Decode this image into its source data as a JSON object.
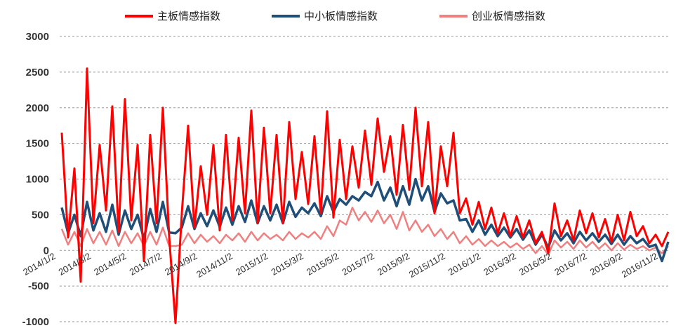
{
  "chart_data": {
    "type": "line",
    "title": "",
    "xlabel": "",
    "ylabel": "",
    "ylim": [
      -1000,
      3000
    ],
    "yticks": [
      -1000,
      -500,
      0,
      500,
      1000,
      1500,
      2000,
      2500,
      3000
    ],
    "ytick_labels": [
      "-1000",
      "-500",
      "0",
      "500",
      "1000",
      "1500",
      "2000",
      "2500",
      "3000"
    ],
    "grid": true,
    "legend": "top-center",
    "x_tick_labels": [
      "2014/1/2",
      "2014/3/2",
      "2014/5/2",
      "2014/7/2",
      "2014/9/2",
      "2014/11/2",
      "2015/1/2",
      "2015/3/2",
      "2015/5/2",
      "2015/7/2",
      "2015/9/2",
      "2015/11/2",
      "2016/1/2",
      "2016/3/2",
      "2016/5/2",
      "2016/7/2",
      "2016/9/2",
      "2016/11/2"
    ],
    "series": [
      {
        "name": "主板情感指数",
        "color": "#ff0000",
        "values": [
          1650,
          180,
          1150,
          -440,
          2550,
          380,
          1480,
          560,
          2020,
          260,
          2120,
          420,
          1480,
          -150,
          1620,
          380,
          2000,
          190,
          -1020,
          520,
          1750,
          320,
          1180,
          500,
          1480,
          280,
          1620,
          420,
          1580,
          520,
          1960,
          390,
          1720,
          520,
          1620,
          380,
          1800,
          720,
          1380,
          650,
          1600,
          520,
          1950,
          460,
          1550,
          720,
          1460,
          880,
          1680,
          920,
          1850,
          1100,
          1600,
          780,
          1760,
          850,
          2000,
          900,
          1800,
          520,
          1460,
          900,
          1650,
          520,
          730,
          360,
          680,
          300,
          600,
          240,
          520,
          200,
          480,
          180,
          420,
          100,
          260,
          -30,
          660,
          200,
          420,
          140,
          560,
          240,
          520,
          180,
          440,
          120,
          500,
          140,
          540,
          200,
          340,
          100,
          220,
          60,
          260
        ]
      },
      {
        "name": "中小板情感指数",
        "color": "#1f4e79",
        "values": [
          600,
          240,
          500,
          200,
          680,
          280,
          520,
          260,
          640,
          220,
          560,
          300,
          500,
          160,
          580,
          260,
          680,
          250,
          240,
          320,
          620,
          300,
          520,
          340,
          560,
          330,
          600,
          360,
          620,
          400,
          700,
          380,
          620,
          420,
          640,
          380,
          680,
          470,
          600,
          520,
          660,
          480,
          760,
          540,
          720,
          640,
          760,
          700,
          820,
          760,
          960,
          700,
          880,
          620,
          900,
          640,
          1000,
          700,
          900,
          540,
          800,
          660,
          700,
          420,
          440,
          260,
          420,
          220,
          360,
          200,
          320,
          180,
          300,
          150,
          280,
          80,
          220,
          40,
          280,
          140,
          240,
          100,
          260,
          140,
          240,
          120,
          220,
          90,
          220,
          80,
          200,
          100,
          160,
          50,
          80,
          -150,
          120
        ]
      },
      {
        "name": "创业板情感指数",
        "color": "#f08080",
        "values": [
          300,
          80,
          260,
          60,
          300,
          100,
          260,
          80,
          280,
          60,
          260,
          100,
          240,
          60,
          260,
          80,
          320,
          60,
          60,
          80,
          240,
          100,
          220,
          120,
          200,
          100,
          220,
          140,
          240,
          120,
          260,
          140,
          240,
          160,
          220,
          140,
          260,
          160,
          240,
          180,
          260,
          160,
          340,
          200,
          420,
          360,
          600,
          420,
          540,
          400,
          560,
          380,
          500,
          300,
          540,
          280,
          420,
          260,
          360,
          200,
          300,
          160,
          260,
          100,
          200,
          80,
          160,
          60,
          140,
          60,
          120,
          40,
          100,
          20,
          80,
          -40,
          60,
          -60,
          140,
          40,
          120,
          20,
          140,
          40,
          120,
          20,
          100,
          0,
          100,
          10,
          80,
          20,
          60,
          0,
          40,
          -40,
          60
        ]
      }
    ]
  }
}
